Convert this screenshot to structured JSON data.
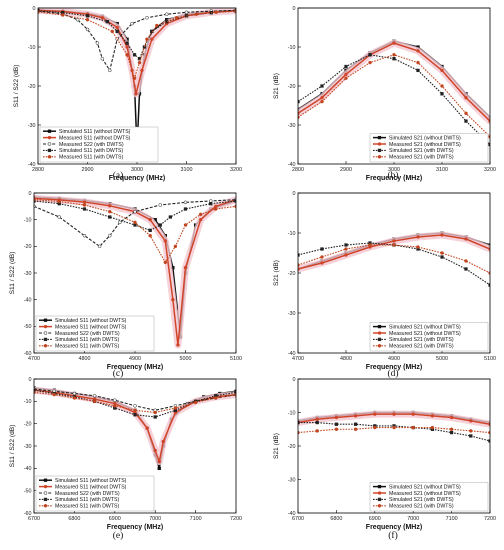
{
  "colors": {
    "sim_without": "#111111",
    "meas_without": "#d0452a",
    "sim_with": "#222222",
    "meas_with": "#c2451f",
    "band": "#f3c6cf"
  },
  "chart_data": [
    {
      "panel_label": "(a)",
      "type": "line",
      "xlabel": "Frequency (MHz)",
      "ylabel": "S11 / S22 (dB)",
      "xlim": [
        2800,
        3200
      ],
      "ylim": [
        -40,
        0
      ],
      "xticks": [
        "2800",
        "2900",
        "3000",
        "3100",
        "3200"
      ],
      "yticks": [
        "0",
        "-10",
        "-20",
        "-30",
        "-40"
      ],
      "legend_position": "bottom-left",
      "series": [
        {
          "name": "Simulated S11 (without DWTS)",
          "style": "sim_without",
          "x": [
            2800,
            2850,
            2900,
            2930,
            2960,
            2980,
            2995,
            3000,
            3005,
            3015,
            3030,
            3060,
            3100,
            3150,
            3200
          ],
          "y": [
            -0.5,
            -0.8,
            -1.4,
            -2.1,
            -4,
            -8,
            -20,
            -36,
            -22,
            -12,
            -6,
            -3,
            -1.6,
            -0.9,
            -0.6
          ]
        },
        {
          "name": "Measured S11 (without DWTS)",
          "style": "meas_without",
          "x": [
            2800,
            2850,
            2900,
            2930,
            2960,
            2980,
            2990,
            2998,
            3010,
            3030,
            3060,
            3100,
            3150,
            3200
          ],
          "y": [
            -0.6,
            -0.9,
            -1.6,
            -2.5,
            -5,
            -10,
            -16,
            -22,
            -16,
            -8,
            -4,
            -2,
            -1.1,
            -0.7
          ]
        },
        {
          "name": "Measured S22 (with DWTS)",
          "style": "meas_s22",
          "x": [
            2800,
            2850,
            2880,
            2900,
            2920,
            2930,
            2945,
            2960,
            2990,
            3020,
            3060,
            3100,
            3150,
            3200
          ],
          "y": [
            -0.8,
            -1.5,
            -3,
            -5.5,
            -9,
            -13,
            -16,
            -8,
            -4,
            -2.5,
            -1.6,
            -1.1,
            -0.8,
            -0.6
          ]
        },
        {
          "name": "Simulated S11 (with DWTS)",
          "style": "sim_with",
          "x": [
            2800,
            2850,
            2900,
            2940,
            2960,
            2980,
            2995,
            3005,
            3015,
            3030,
            3060,
            3100,
            3150,
            3200
          ],
          "y": [
            -0.7,
            -1.2,
            -2,
            -3.5,
            -6,
            -9,
            -12,
            -13,
            -10,
            -6,
            -3.5,
            -2,
            -1.2,
            -0.8
          ]
        },
        {
          "name": "Measured S11 (with DWTS)",
          "style": "meas_with",
          "x": [
            2800,
            2850,
            2900,
            2950,
            2980,
            2995,
            3005,
            3020,
            3040,
            3080,
            3120,
            3160,
            3200
          ],
          "y": [
            -1,
            -1.8,
            -3,
            -6,
            -12,
            -18,
            -14,
            -8,
            -4.5,
            -2.5,
            -1.6,
            -1.1,
            -0.8
          ]
        }
      ]
    },
    {
      "panel_label": "(b)",
      "type": "line",
      "xlabel": "Frequency (MHz)",
      "ylabel": "S21 (dB)",
      "xlim": [
        2800,
        3200
      ],
      "ylim": [
        -40,
        0
      ],
      "xticks": [
        "2800",
        "2900",
        "3000",
        "3100",
        "3200"
      ],
      "yticks": [
        "0",
        "-10",
        "-20",
        "-30",
        "-40"
      ],
      "legend_position": "bottom-right",
      "series": [
        {
          "name": "Simulated S21 (without DWTS)",
          "style": "sim_without",
          "x": [
            2800,
            2850,
            2900,
            2950,
            3000,
            3050,
            3100,
            3150,
            3200
          ],
          "y": [
            -26,
            -22,
            -16,
            -11.5,
            -8.5,
            -10,
            -15,
            -22,
            -28
          ]
        },
        {
          "name": "Measured S21 (without DWTS)",
          "style": "meas_without",
          "x": [
            2800,
            2850,
            2900,
            2950,
            3000,
            3050,
            3100,
            3150,
            3200
          ],
          "y": [
            -27,
            -23,
            -17,
            -12,
            -9,
            -11,
            -16,
            -23,
            -29
          ]
        },
        {
          "name": "Simulated S21 (with DWTS)",
          "style": "sim_with",
          "x": [
            2800,
            2850,
            2900,
            2950,
            3000,
            3050,
            3100,
            3150,
            3200
          ],
          "y": [
            -24,
            -20,
            -15,
            -12,
            -13,
            -16,
            -22,
            -29,
            -35
          ]
        },
        {
          "name": "Measured S21 (with DWTS)",
          "style": "meas_with",
          "x": [
            2800,
            2850,
            2900,
            2950,
            3000,
            3050,
            3100,
            3150,
            3200
          ],
          "y": [
            -28,
            -24,
            -18,
            -14,
            -12,
            -14,
            -20,
            -27,
            -33
          ]
        }
      ]
    },
    {
      "panel_label": "(c)",
      "type": "line",
      "xlabel": "Frequency (MHz)",
      "ylabel": "S11 / S22 (dB)",
      "xlim": [
        4700,
        5100
      ],
      "ylim": [
        -60,
        0
      ],
      "xticks": [
        "4700",
        "4800",
        "4900",
        "5000",
        "5100"
      ],
      "yticks": [
        "0",
        "-10",
        "-20",
        "-30",
        "-40",
        "-50",
        "-60"
      ],
      "legend_position": "bottom-left",
      "series": [
        {
          "name": "Simulated S11 (without DWTS)",
          "style": "sim_without",
          "x": [
            4700,
            4750,
            4800,
            4850,
            4900,
            4940,
            4960,
            4975,
            4990,
            5000,
            5020,
            5050,
            5100
          ],
          "y": [
            -1.5,
            -2,
            -2.8,
            -4,
            -6,
            -10,
            -16,
            -28,
            -54,
            -30,
            -12,
            -6,
            -3
          ]
        },
        {
          "name": "Measured S11 (without DWTS)",
          "style": "meas_without",
          "x": [
            4700,
            4750,
            4800,
            4850,
            4900,
            4930,
            4960,
            4975,
            4985,
            5000,
            5030,
            5060,
            5100
          ],
          "y": [
            -2,
            -2.6,
            -3.4,
            -4.8,
            -7,
            -10,
            -18,
            -40,
            -57,
            -28,
            -10,
            -5,
            -2.5
          ]
        },
        {
          "name": "Measured S22 (with DWTS)",
          "style": "meas_s22",
          "x": [
            4700,
            4750,
            4800,
            4830,
            4850,
            4870,
            4900,
            4950,
            5000,
            5050,
            5100
          ],
          "y": [
            -5,
            -9,
            -16,
            -20,
            -16,
            -11,
            -7,
            -4.5,
            -3.5,
            -3,
            -2.5
          ]
        },
        {
          "name": "Simulated S11 (with DWTS)",
          "style": "sim_with",
          "x": [
            4700,
            4750,
            4800,
            4850,
            4900,
            4930,
            4950,
            4970,
            5000,
            5050,
            5100
          ],
          "y": [
            -3,
            -4,
            -6,
            -9,
            -12,
            -14,
            -12,
            -9,
            -6,
            -4,
            -3
          ]
        },
        {
          "name": "Measured S11 (with DWTS)",
          "style": "meas_with",
          "x": [
            4700,
            4750,
            4800,
            4850,
            4900,
            4930,
            4960,
            4980,
            5000,
            5030,
            5060,
            5100
          ],
          "y": [
            -2.5,
            -3.2,
            -4.5,
            -7,
            -11,
            -16,
            -26,
            -20,
            -12,
            -8,
            -6,
            -5
          ]
        }
      ]
    },
    {
      "panel_label": "(d)",
      "type": "line",
      "xlabel": "Frequency (MHz)",
      "ylabel": "S21 (dB)",
      "xlim": [
        4700,
        5100
      ],
      "ylim": [
        -40,
        0
      ],
      "xticks": [
        "4700",
        "4800",
        "4900",
        "5000",
        "5100"
      ],
      "yticks": [
        "0",
        "-10",
        "-20",
        "-30",
        "-40"
      ],
      "legend_position": "bottom-right",
      "series": [
        {
          "name": "Simulated S21 (without DWTS)",
          "style": "sim_without",
          "x": [
            4700,
            4750,
            4800,
            4850,
            4900,
            4950,
            5000,
            5050,
            5100
          ],
          "y": [
            -19,
            -17,
            -15,
            -13,
            -11.5,
            -10.5,
            -10,
            -11,
            -13
          ]
        },
        {
          "name": "Measured S21 (without DWTS)",
          "style": "meas_without",
          "x": [
            4700,
            4750,
            4800,
            4850,
            4900,
            4950,
            5000,
            5050,
            5100
          ],
          "y": [
            -19,
            -17.5,
            -15.5,
            -13.5,
            -12,
            -11,
            -10.5,
            -11.5,
            -14
          ]
        },
        {
          "name": "Simulated S21 (with DWTS)",
          "style": "sim_with",
          "x": [
            4700,
            4750,
            4800,
            4850,
            4900,
            4950,
            5000,
            5050,
            5100
          ],
          "y": [
            -15.5,
            -14,
            -13,
            -12.5,
            -13,
            -14,
            -16,
            -19,
            -23
          ]
        },
        {
          "name": "Measured S21 (with DWTS)",
          "style": "meas_with",
          "x": [
            4700,
            4750,
            4800,
            4850,
            4900,
            4950,
            5000,
            5050,
            5100
          ],
          "y": [
            -18,
            -16,
            -14,
            -13,
            -13,
            -13.5,
            -15,
            -17,
            -20
          ]
        }
      ]
    },
    {
      "panel_label": "(e)",
      "type": "line",
      "xlabel": "Frequency (MHz)",
      "ylabel": "S11 / S22 (dB)",
      "xlim": [
        6700,
        7200
      ],
      "ylim": [
        -60,
        0
      ],
      "xticks": [
        "6700",
        "6800",
        "6900",
        "7000",
        "7100",
        "7200"
      ],
      "yticks": [
        "0",
        "-10",
        "-20",
        "-30",
        "-40",
        "-50",
        "-60"
      ],
      "legend_position": "bottom-left",
      "series": [
        {
          "name": "Simulated S11 (without DWTS)",
          "style": "sim_without",
          "x": [
            6700,
            6750,
            6800,
            6850,
            6900,
            6950,
            6980,
            7000,
            7010,
            7020,
            7040,
            7080,
            7120,
            7160,
            7200
          ],
          "y": [
            -4,
            -5,
            -6.5,
            -8,
            -10,
            -14,
            -22,
            -34,
            -40,
            -30,
            -18,
            -11,
            -8,
            -6.5,
            -5.5
          ]
        },
        {
          "name": "Measured S11 (without DWTS)",
          "style": "meas_without",
          "x": [
            6700,
            6750,
            6800,
            6850,
            6900,
            6950,
            6980,
            7000,
            7010,
            7020,
            7050,
            7100,
            7150,
            7200
          ],
          "y": [
            -5,
            -6,
            -7.5,
            -9,
            -11,
            -15,
            -22,
            -32,
            -37,
            -28,
            -15,
            -10,
            -8,
            -7
          ]
        },
        {
          "name": "Measured S22 (with DWTS)",
          "style": "meas_s22",
          "x": [
            6700,
            6750,
            6800,
            6850,
            6900,
            6950,
            7000,
            7050,
            7100,
            7150,
            7200
          ],
          "y": [
            -4.5,
            -5.5,
            -6.5,
            -7.5,
            -9.5,
            -12,
            -14,
            -12,
            -10,
            -8.5,
            -7
          ]
        },
        {
          "name": "Simulated S11 (with DWTS)",
          "style": "sim_with",
          "x": [
            6700,
            6750,
            6800,
            6850,
            6900,
            6950,
            7000,
            7050,
            7100,
            7150,
            7200
          ],
          "y": [
            -5,
            -6.5,
            -8,
            -10,
            -13,
            -16,
            -17,
            -14,
            -10,
            -7.5,
            -6
          ]
        },
        {
          "name": "Measured S11 (with DWTS)",
          "style": "meas_with",
          "x": [
            6700,
            6750,
            6800,
            6850,
            6900,
            6950,
            7000,
            7050,
            7100,
            7150,
            7200
          ],
          "y": [
            -6,
            -7,
            -8.5,
            -10,
            -12,
            -14,
            -15,
            -13,
            -10.5,
            -8.5,
            -7
          ]
        }
      ]
    },
    {
      "panel_label": "(f)",
      "type": "line",
      "xlabel": "Frequency (MHz)",
      "ylabel": "S21 (dB)",
      "xlim": [
        6700,
        7200
      ],
      "ylim": [
        -40,
        0
      ],
      "xticks": [
        "6700",
        "6800",
        "6900",
        "7000",
        "7100",
        "7200"
      ],
      "yticks": [
        "0",
        "-10",
        "-20",
        "-30",
        "-40"
      ],
      "legend_position": "bottom-right",
      "series": [
        {
          "name": "Simulated S21 (without DWTS)",
          "style": "sim_without",
          "x": [
            6700,
            6750,
            6800,
            6850,
            6900,
            6950,
            7000,
            7050,
            7100,
            7150,
            7200
          ],
          "y": [
            -12.5,
            -11.5,
            -11,
            -10.5,
            -10,
            -10,
            -10,
            -10.5,
            -11,
            -12,
            -13
          ]
        },
        {
          "name": "Measured S21 (without DWTS)",
          "style": "meas_without",
          "x": [
            6700,
            6750,
            6800,
            6850,
            6900,
            6950,
            7000,
            7050,
            7100,
            7150,
            7200
          ],
          "y": [
            -13,
            -12,
            -11.5,
            -11,
            -10.5,
            -10.5,
            -10.5,
            -11,
            -11.5,
            -12.5,
            -13.5
          ]
        },
        {
          "name": "Simulated S21 (with DWTS)",
          "style": "sim_with",
          "x": [
            6700,
            6750,
            6800,
            6850,
            6900,
            6950,
            7000,
            7050,
            7100,
            7150,
            7200
          ],
          "y": [
            -13,
            -13,
            -13.5,
            -13.5,
            -14,
            -14,
            -14.5,
            -15,
            -16,
            -17,
            -18.5
          ]
        },
        {
          "name": "Measured S21 (with DWTS)",
          "style": "meas_with",
          "x": [
            6700,
            6750,
            6800,
            6850,
            6900,
            6950,
            7000,
            7050,
            7100,
            7150,
            7200
          ],
          "y": [
            -16,
            -15.5,
            -15,
            -15,
            -14.5,
            -14.5,
            -14.5,
            -14.5,
            -15,
            -15.5,
            -16
          ]
        }
      ]
    }
  ]
}
